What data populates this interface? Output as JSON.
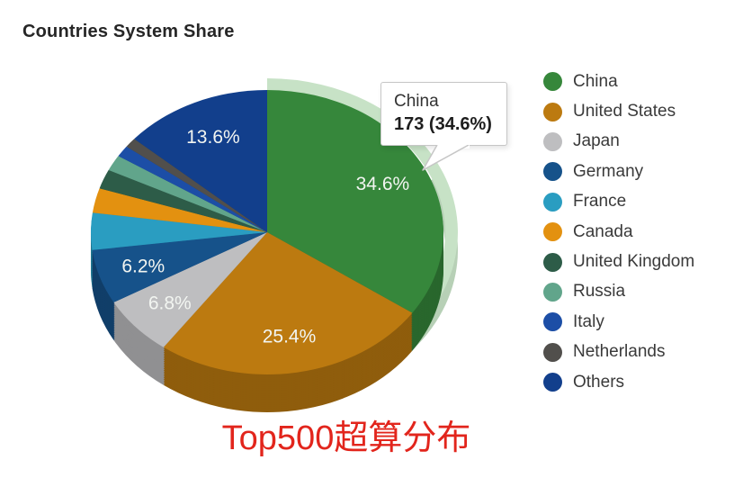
{
  "header": {
    "title": "Countries System Share"
  },
  "tooltip": {
    "country": "China",
    "value_text": "173 (34.6%)"
  },
  "caption": {
    "text": "Top500超算分布",
    "color": "#e2251c"
  },
  "chart_data": {
    "type": "pie",
    "style": "3d",
    "title": "Countries System Share",
    "legend_position": "right",
    "highlighted_slice": "China",
    "highlight_color": "#c7e2c6",
    "slices": [
      {
        "label": "China",
        "percent": 34.6,
        "value": 173,
        "color": "#36873b",
        "data_label": "34.6%"
      },
      {
        "label": "United States",
        "percent": 25.4,
        "color": "#bc7a10",
        "data_label": "25.4%"
      },
      {
        "label": "Japan",
        "percent": 6.8,
        "color": "#bebec0",
        "data_label": "6.8%"
      },
      {
        "label": "Germany",
        "percent": 6.2,
        "color": "#16528a",
        "data_label": "6.2%"
      },
      {
        "label": "France",
        "percent": 4.2,
        "color": "#2a9dc1"
      },
      {
        "label": "Canada",
        "percent": 2.8,
        "color": "#e39110"
      },
      {
        "label": "United Kingdom",
        "percent": 2.2,
        "color": "#2d5c48"
      },
      {
        "label": "Russia",
        "percent": 1.8,
        "color": "#61a58b"
      },
      {
        "label": "Italy",
        "percent": 1.3,
        "color": "#1c4ea6"
      },
      {
        "label": "Netherlands",
        "percent": 1.1,
        "color": "#514f4c"
      },
      {
        "label": "Others",
        "percent": 13.6,
        "color": "#123f8c",
        "data_label": "13.6%"
      }
    ]
  }
}
